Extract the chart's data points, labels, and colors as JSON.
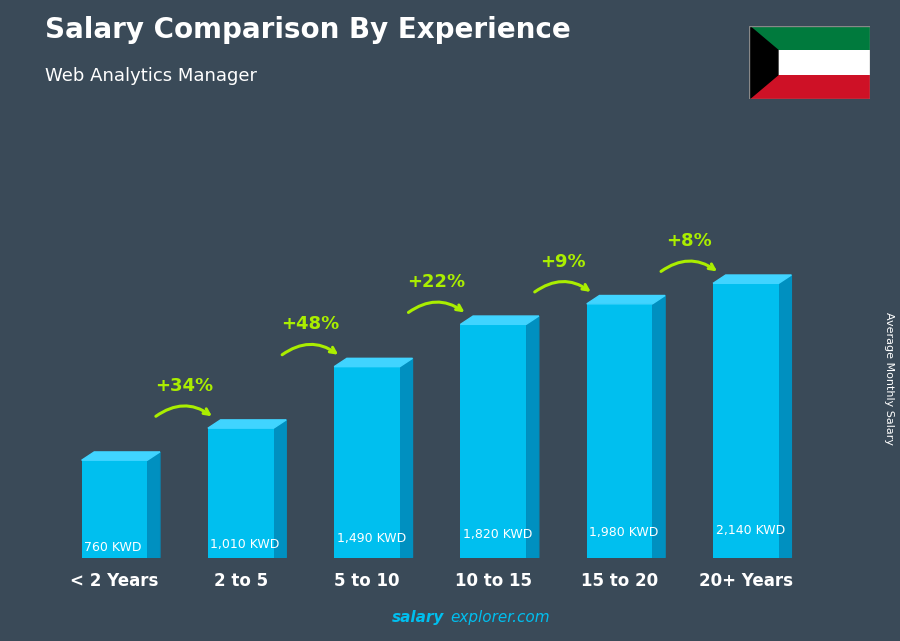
{
  "title": "Salary Comparison By Experience",
  "subtitle": "Web Analytics Manager",
  "categories": [
    "< 2 Years",
    "2 to 5",
    "5 to 10",
    "10 to 15",
    "15 to 20",
    "20+ Years"
  ],
  "values": [
    760,
    1010,
    1490,
    1820,
    1980,
    2140
  ],
  "value_labels": [
    "760 KWD",
    "1,010 KWD",
    "1,490 KWD",
    "1,820 KWD",
    "1,980 KWD",
    "2,140 KWD"
  ],
  "pct_labels": [
    "+34%",
    "+48%",
    "+22%",
    "+9%",
    "+8%"
  ],
  "face_color": "#00BFEF",
  "side_color": "#0090C0",
  "top_color": "#40D4FF",
  "bg_color": "#3a4a58",
  "title_color": "#FFFFFF",
  "subtitle_color": "#FFFFFF",
  "value_color": "#FFFFFF",
  "pct_color": "#AAEE00",
  "footer_bold": "salary",
  "footer_rest": "explorer.com",
  "footer_color": "#00BFEF",
  "ylabel": "Average Monthly Salary",
  "ylim_max": 2750,
  "fig_width": 9.0,
  "fig_height": 6.41,
  "flag_green": "#007A3D",
  "flag_red": "#CE1126",
  "flag_white": "#FFFFFF",
  "flag_black": "#000000"
}
